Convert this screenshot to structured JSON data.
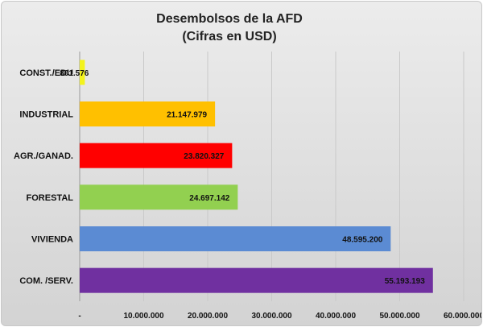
{
  "chart_data": {
    "type": "bar",
    "orientation": "horizontal",
    "title": "Desembolsos de la AFD",
    "subtitle": "(Cifras en USD)",
    "categories": [
      "CONST./EDU",
      "INDUSTRIAL",
      "AGR./GANAD.",
      "FORESTAL",
      "VIVIENDA",
      "COM. /SERV."
    ],
    "values": [
      801576,
      21147979,
      23820327,
      24697142,
      48595200,
      55193193
    ],
    "value_labels": [
      "801.576",
      "21.147.979",
      "23.820.327",
      "24.697.142",
      "48.595.200",
      "55.193.193"
    ],
    "colors": [
      "#f3f31c",
      "#ffc000",
      "#ff0000",
      "#92d050",
      "#5b8bd3",
      "#7030a0"
    ],
    "xlim": [
      0,
      60000000
    ],
    "xticks": [
      0,
      10000000,
      20000000,
      30000000,
      40000000,
      50000000,
      60000000
    ],
    "xtick_labels": [
      "-",
      "10.000.000",
      "20.000.000",
      "30.000.000",
      "40.000.000",
      "50.000.000",
      "60.000.000"
    ],
    "xlabel": "",
    "ylabel": "",
    "grid": true,
    "legend": "none"
  }
}
